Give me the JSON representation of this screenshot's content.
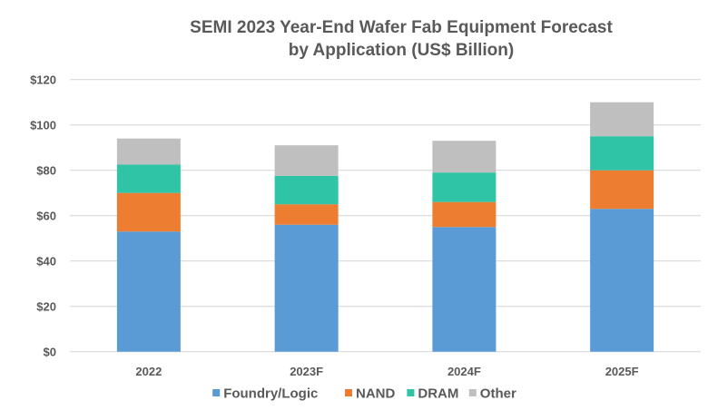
{
  "chart_data": {
    "type": "bar",
    "stacked": true,
    "title": "SEMI 2023 Year-End Wafer Fab Equipment Forecast",
    "subtitle": "by Application (US$ Billion)",
    "xlabel": "",
    "ylabel": "",
    "categories": [
      "2022",
      "2023F",
      "2024F",
      "2025F"
    ],
    "series": [
      {
        "name": "Foundry/Logic",
        "color": "#5B9BD5",
        "values": [
          53,
          56,
          55,
          63
        ]
      },
      {
        "name": "NAND",
        "color": "#ED7D31",
        "values": [
          17,
          9,
          11,
          17
        ]
      },
      {
        "name": "DRAM",
        "color": "#2EC4A5",
        "values": [
          12.5,
          12.5,
          13,
          15
        ]
      },
      {
        "name": "Other",
        "color": "#BFBFBF",
        "values": [
          11.5,
          13.5,
          14,
          15
        ]
      }
    ],
    "ylim": [
      0,
      120
    ],
    "yticks": [
      0,
      20,
      40,
      60,
      80,
      100,
      120
    ],
    "ytick_labels": [
      "$0",
      "$20",
      "$40",
      "$60",
      "$80",
      "$100",
      "$120"
    ],
    "grid": true,
    "legend_position": "bottom"
  }
}
